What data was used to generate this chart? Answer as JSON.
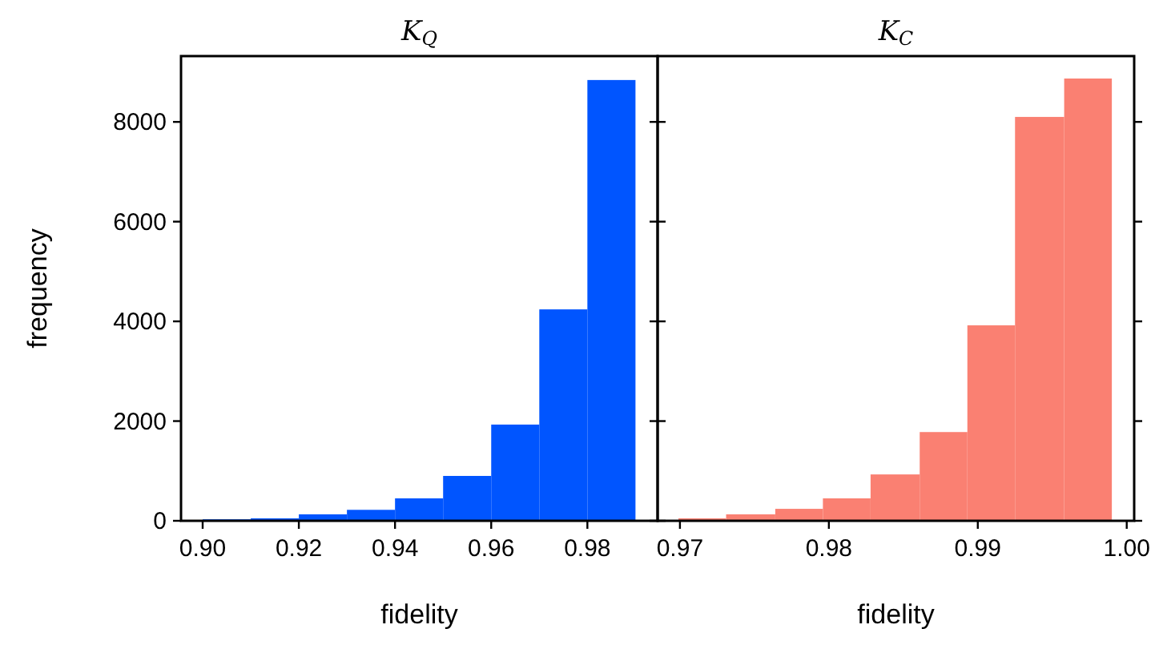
{
  "chart_data": [
    {
      "type": "histogram",
      "title": "K$_{Q}$",
      "xlabel": "fidelity",
      "ylabel": "frequency",
      "color": "#0055ff",
      "bins": [
        0.9,
        0.91,
        0.92,
        0.93,
        0.94,
        0.95,
        0.96,
        0.97,
        0.98,
        0.99
      ],
      "values": [
        30,
        50,
        130,
        220,
        450,
        900,
        1930,
        4240,
        8840
      ],
      "xlim": [
        0.8955,
        0.9946
      ],
      "xticks": [
        {
          "value": 0.9,
          "label": "0.90"
        },
        0.92,
        0.94,
        0.96,
        0.98
      ],
      "ylim": [
        0,
        9320
      ],
      "yticks": [
        0,
        2000,
        4000,
        6000,
        8000
      ]
    },
    {
      "type": "histogram",
      "title": "K$_{C}$",
      "xlabel": "fidelity",
      "color": "#fa8072",
      "bins": [
        0.9699,
        0.9731,
        0.9764,
        0.9796,
        0.9828,
        0.9861,
        0.9893,
        0.9925,
        0.9958,
        0.999
      ],
      "values": [
        50,
        130,
        240,
        450,
        930,
        1780,
        3920,
        8100,
        8870
      ],
      "xlim": [
        0.9685,
        1.0005
      ],
      "xticks": [
        0.97,
        0.98,
        0.99,
        {
          "value": 1.0,
          "label": "1.00"
        }
      ],
      "ylim": [
        0,
        9320
      ],
      "yticks": [
        0,
        2000,
        4000,
        6000,
        8000
      ],
      "tick_labels": "x"
    }
  ]
}
